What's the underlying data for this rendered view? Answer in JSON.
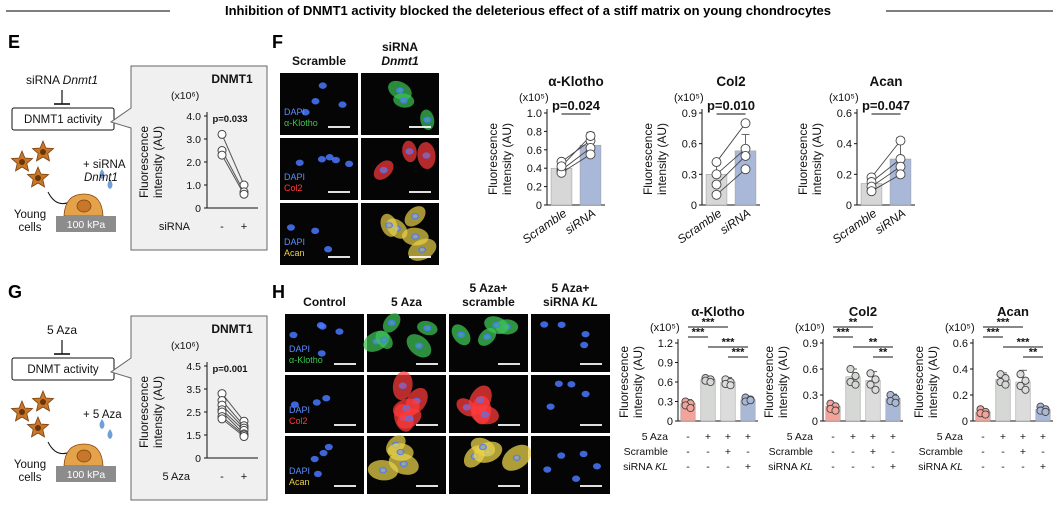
{
  "figure_title": "Inhibition of DNMT1 activity blocked the deleterious effect of a stiff matrix on young chondrocytes",
  "colors": {
    "ctrl_gray": "#d7d7d7",
    "treat_blue": "#a9b8d8",
    "control_salmon": "#f2a49a",
    "aza_gray": "#d5d8d5",
    "scramble_gray": "#dcdcdc",
    "kl_blue": "#aab8d8",
    "cell_brown": "#c8772a",
    "substrate_gray": "#8c8c8c",
    "callout_gray": "#f0f0f0",
    "ink": "#111111",
    "dapi": "#4a78ff",
    "klotho_green": "#3cc454",
    "col2_red": "#ff3a3a",
    "acan_yellow": "#e8d24a"
  },
  "panels": {
    "E": {
      "letter": "E",
      "schematic": {
        "treatment_prefix": "siRNA ",
        "treatment_gene": "Dnmt1",
        "target_box": "DNMT1 activity",
        "added_line1": "+ siRNA",
        "added_line2": "Dnmt1",
        "cells_line1": "Young",
        "cells_line2": "cells",
        "substrate": "100 kPa"
      },
      "inset": {
        "title": "DNMT1",
        "unit": "(x10⁶)",
        "ylabel_line1": "Fluorescence",
        "ylabel_line2": "intensity (AU)",
        "yticks": [
          "4.0",
          "3.0",
          "2.0",
          "1.0",
          "0"
        ],
        "pvalue": "p=0.033",
        "condition_label": "siRNA",
        "condition_signs": [
          "-",
          "+"
        ],
        "paired_points": [
          [
            3.2,
            1.0
          ],
          [
            2.5,
            0.7
          ],
          [
            2.3,
            0.6
          ]
        ]
      }
    },
    "F": {
      "letter": "F",
      "col_headers": [
        {
          "line1": "Scramble",
          "line2": "",
          "line2_italic": ""
        },
        {
          "line1": "siRNA",
          "line2": "",
          "line2_italic": "Dnmt1"
        }
      ],
      "rows": [
        {
          "stain1": "DAPI",
          "stain2": "α-Klotho",
          "kind": "klotho"
        },
        {
          "stain1": "DAPI",
          "stain2": "Col2",
          "kind": "col2"
        },
        {
          "stain1": "DAPI",
          "stain2": "Acan",
          "kind": "acan"
        }
      ]
    },
    "G": {
      "letter": "G",
      "schematic": {
        "treatment_prefix": "5 Aza",
        "treatment_gene": "",
        "target_box": "DNMT activity",
        "added_line1": "+ 5 Aza",
        "added_line2": "",
        "cells_line1": "Young",
        "cells_line2": "cells",
        "substrate": "100 kPa"
      },
      "inset": {
        "title": "DNMT1",
        "unit": "(x10⁶)",
        "ylabel_line1": "Fluorescence",
        "ylabel_line2": "intensity (AU)",
        "yticks": [
          "4.5",
          "3.5",
          "2.5",
          "1.5",
          "0"
        ],
        "pvalue": "p=0.001",
        "condition_label": "5 Aza",
        "condition_signs": [
          "-",
          "+"
        ],
        "paired_points": [
          [
            3.3,
            2.1
          ],
          [
            3.0,
            1.9
          ],
          [
            2.8,
            1.8
          ],
          [
            2.6,
            1.7
          ],
          [
            2.5,
            1.55
          ],
          [
            2.3,
            1.5
          ],
          [
            2.2,
            1.4
          ]
        ]
      }
    },
    "H": {
      "letter": "H",
      "col_headers": [
        {
          "line1": "Control",
          "line2": "",
          "line2_italic": ""
        },
        {
          "line1": "5 Aza",
          "line2": "",
          "line2_italic": ""
        },
        {
          "line1": "5 Aza+",
          "line2": "scramble",
          "line2_italic": ""
        },
        {
          "line1": "5 Aza+",
          "line2": "siRNA ",
          "line2_italic": "KL"
        }
      ],
      "rows": [
        {
          "stain1": "DAPI",
          "stain2": "α-Klotho",
          "kind": "klotho"
        },
        {
          "stain1": "DAPI",
          "stain2": "Col2",
          "kind": "col2"
        },
        {
          "stain1": "DAPI",
          "stain2": "Acan",
          "kind": "acan"
        }
      ],
      "row_labels": [
        "5 Aza",
        "Scramble",
        "siRNA "
      ],
      "row_label_italic": [
        "",
        "",
        "KL"
      ],
      "condition_signs": [
        [
          "-",
          "+",
          "+",
          "+"
        ],
        [
          "-",
          "-",
          "+",
          "-"
        ],
        [
          "-",
          "-",
          "-",
          "+"
        ]
      ]
    }
  },
  "chart_data": [
    {
      "type": "bar",
      "panel": "F",
      "title": "α-Klotho",
      "unit": "(x10⁵)",
      "ylabel": "Fluorescence intensity (AU)",
      "categories": [
        "Scramble",
        "siRNA"
      ],
      "values": [
        0.4,
        0.65
      ],
      "errors": [
        0.06,
        0.14
      ],
      "ylim": [
        0,
        1.0
      ],
      "yticks": [
        "1.0",
        "0.8",
        "0.6",
        "0.4",
        "0.2",
        "0"
      ],
      "points": [
        [
          0.47,
          0.38,
          0.35,
          0.42
        ],
        [
          0.7,
          0.62,
          0.55,
          0.75
        ]
      ],
      "paired": true,
      "comparisons": [
        {
          "label": "p=0.024",
          "from": 0,
          "to": 1
        }
      ]
    },
    {
      "type": "bar",
      "panel": "F",
      "title": "Col2",
      "unit": "(x10⁵)",
      "ylabel": "Fluorescence intensity (AU)",
      "categories": [
        "Scramble",
        "siRNA"
      ],
      "values": [
        0.3,
        0.53
      ],
      "errors": [
        0.14,
        0.16
      ],
      "ylim": [
        0,
        0.9
      ],
      "yticks": [
        "0.9",
        "0.6",
        "0.3",
        "0"
      ],
      "points": [
        [
          0.42,
          0.3,
          0.2,
          0.1
        ],
        [
          0.8,
          0.55,
          0.48,
          0.35
        ]
      ],
      "paired": true,
      "comparisons": [
        {
          "label": "p=0.010",
          "from": 0,
          "to": 1
        }
      ]
    },
    {
      "type": "bar",
      "panel": "F",
      "title": "Acan",
      "unit": "(x10⁵)",
      "ylabel": "Fluorescence intensity (AU)",
      "categories": [
        "Scramble",
        "siRNA"
      ],
      "values": [
        0.14,
        0.3
      ],
      "errors": [
        0.05,
        0.14
      ],
      "ylim": [
        0,
        0.6
      ],
      "yticks": [
        "0.6",
        "0.4",
        "0.2",
        "0"
      ],
      "points": [
        [
          0.18,
          0.15,
          0.12,
          0.09
        ],
        [
          0.42,
          0.3,
          0.25,
          0.2
        ]
      ],
      "paired": true,
      "comparisons": [
        {
          "label": "p=0.047",
          "from": 0,
          "to": 1
        }
      ]
    },
    {
      "type": "bar",
      "panel": "H",
      "title": "α-Klotho",
      "unit": "(x10⁵)",
      "ylabel": "Fluorescence intensity (AU)",
      "categories": [
        "Control",
        "5 Aza",
        "5 Aza+scramble",
        "5 Aza+siRNA KL"
      ],
      "values": [
        0.27,
        0.64,
        0.6,
        0.33
      ],
      "errors": [
        0.06,
        0.04,
        0.07,
        0.04
      ],
      "ylim": [
        0,
        1.2
      ],
      "yticks": [
        "1.2",
        "0.9",
        "0.6",
        "0.3",
        "0"
      ],
      "points": [
        [
          0.3,
          0.27,
          0.24,
          0.2
        ],
        [
          0.66,
          0.64,
          0.62,
          0.6
        ],
        [
          0.64,
          0.6,
          0.57,
          0.55
        ],
        [
          0.36,
          0.33,
          0.3,
          0.32
        ]
      ],
      "paired": false,
      "comparisons": [
        {
          "label": "***",
          "from": 0,
          "to": 2
        },
        {
          "label": "***",
          "from": 0,
          "to": 1
        },
        {
          "label": "***",
          "from": 1,
          "to": 3
        },
        {
          "label": "***",
          "from": 2,
          "to": 3
        }
      ]
    },
    {
      "type": "bar",
      "panel": "H",
      "title": "Col2",
      "unit": "(x10⁵)",
      "ylabel": "Fluorescence intensity (AU)",
      "categories": [
        "Control",
        "5 Aza",
        "5 Aza+scramble",
        "5 Aza+siRNA KL"
      ],
      "values": [
        0.17,
        0.51,
        0.47,
        0.26
      ],
      "errors": [
        0.03,
        0.09,
        0.1,
        0.05
      ],
      "ylim": [
        0,
        0.9
      ],
      "yticks": [
        "0.9",
        "0.6",
        "0.3",
        "0"
      ],
      "points": [
        [
          0.2,
          0.17,
          0.14,
          0.12
        ],
        [
          0.6,
          0.52,
          0.45,
          0.42
        ],
        [
          0.55,
          0.48,
          0.42,
          0.36
        ],
        [
          0.3,
          0.26,
          0.23,
          0.21
        ]
      ],
      "paired": false,
      "comparisons": [
        {
          "label": "**",
          "from": 0,
          "to": 2
        },
        {
          "label": "***",
          "from": 0,
          "to": 1
        },
        {
          "label": "**",
          "from": 1,
          "to": 3
        },
        {
          "label": "**",
          "from": 2,
          "to": 3
        }
      ]
    },
    {
      "type": "bar",
      "panel": "H",
      "title": "Acan",
      "unit": "(x10⁵)",
      "ylabel": "Fluorescence intensity (AU)",
      "categories": [
        "Control",
        "5 Aza",
        "5 Aza+scramble",
        "5 Aza+siRNA KL"
      ],
      "values": [
        0.07,
        0.32,
        0.3,
        0.09
      ],
      "errors": [
        0.02,
        0.05,
        0.09,
        0.02
      ],
      "ylim": [
        0,
        0.6
      ],
      "yticks": [
        "0.6",
        "0.4",
        "0.2",
        "0"
      ],
      "points": [
        [
          0.09,
          0.07,
          0.06,
          0.05
        ],
        [
          0.36,
          0.33,
          0.3,
          0.28
        ],
        [
          0.36,
          0.31,
          0.27,
          0.24
        ],
        [
          0.11,
          0.09,
          0.08,
          0.07
        ]
      ],
      "paired": false,
      "comparisons": [
        {
          "label": "***",
          "from": 0,
          "to": 2
        },
        {
          "label": "***",
          "from": 0,
          "to": 1
        },
        {
          "label": "***",
          "from": 1,
          "to": 3
        },
        {
          "label": "**",
          "from": 2,
          "to": 3
        }
      ]
    }
  ]
}
